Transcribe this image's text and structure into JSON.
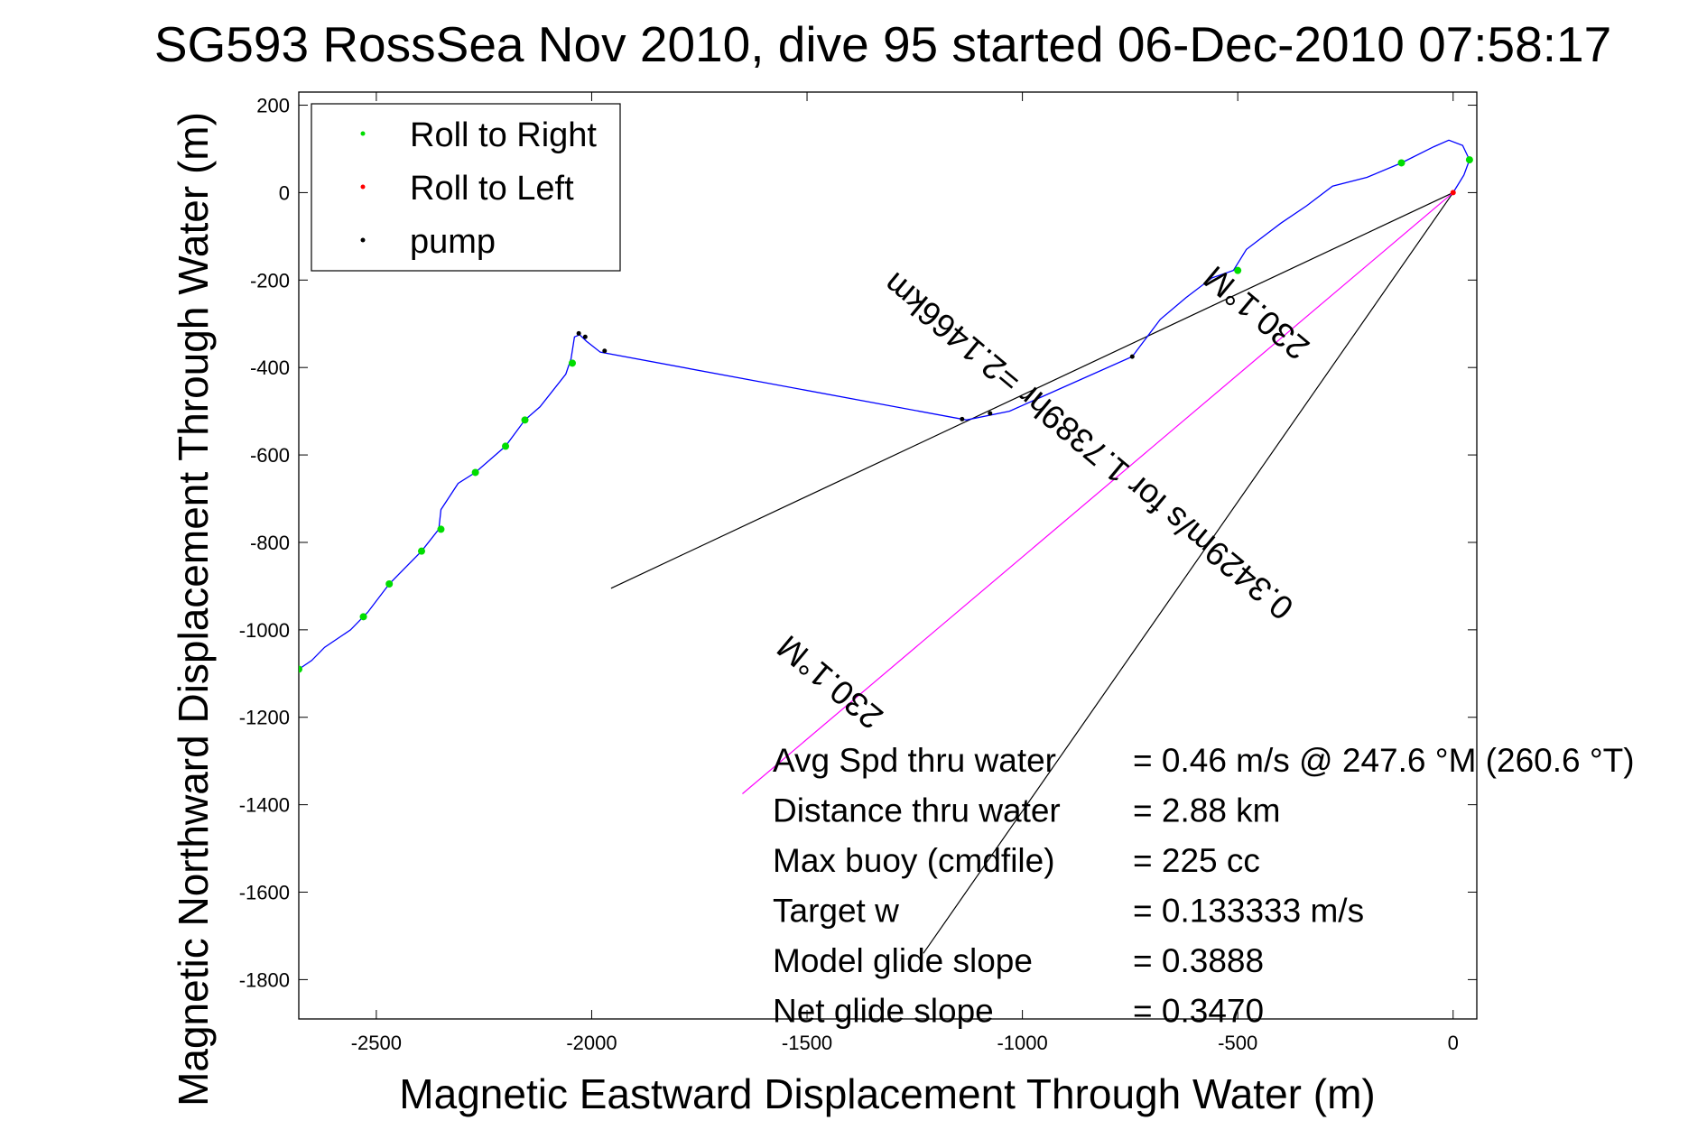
{
  "chart_data": {
    "type": "line",
    "title": "SG593 RossSea Nov 2010, dive 95 started 06-Dec-2010 07:58:17",
    "xlabel": "Magnetic Eastward Displacement Through Water (m)",
    "ylabel": "Magnetic Northward Displacement Through Water (m)",
    "xlim": [
      -2680,
      55
    ],
    "ylim": [
      -1890,
      230
    ],
    "xticks": [
      -2500,
      -2000,
      -1500,
      -1000,
      -500,
      0
    ],
    "yticks": [
      200,
      0,
      -200,
      -400,
      -600,
      -800,
      -1000,
      -1200,
      -1400,
      -1600,
      -1800
    ],
    "grid": false,
    "legend_position": "top-left",
    "legend": [
      {
        "label": "Roll to Right",
        "color": "#00dd00"
      },
      {
        "label": "Roll to Left",
        "color": "#ff0000"
      },
      {
        "label": "pump",
        "color": "#000000"
      }
    ],
    "series": [
      {
        "name": "track",
        "color": "#0000ff",
        "points": [
          [
            0,
            0
          ],
          [
            25,
            40
          ],
          [
            38,
            75
          ],
          [
            22,
            108
          ],
          [
            -10,
            120
          ],
          [
            -45,
            105
          ],
          [
            -120,
            68
          ],
          [
            -200,
            35
          ],
          [
            -280,
            15
          ],
          [
            -340,
            -30
          ],
          [
            -400,
            -70
          ],
          [
            -480,
            -130
          ],
          [
            -510,
            -178
          ],
          [
            -560,
            -195
          ],
          [
            -620,
            -240
          ],
          [
            -680,
            -290
          ],
          [
            -745,
            -375
          ],
          [
            -1030,
            -500
          ],
          [
            -1130,
            -520
          ],
          [
            -1980,
            -365
          ],
          [
            -2012,
            -340
          ],
          [
            -2028,
            -325
          ],
          [
            -2040,
            -330
          ],
          [
            -2048,
            -380
          ],
          [
            -2060,
            -415
          ],
          [
            -2120,
            -490
          ],
          [
            -2155,
            -520
          ],
          [
            -2200,
            -580
          ],
          [
            -2270,
            -640
          ],
          [
            -2310,
            -665
          ],
          [
            -2350,
            -725
          ],
          [
            -2355,
            -770
          ],
          [
            -2395,
            -820
          ],
          [
            -2470,
            -895
          ],
          [
            -2520,
            -960
          ],
          [
            -2560,
            -1000
          ],
          [
            -2620,
            -1040
          ],
          [
            -2650,
            -1070
          ],
          [
            -2680,
            -1090
          ]
        ]
      }
    ],
    "markers": {
      "roll_right": [
        [
          38,
          75
        ],
        [
          -120,
          68
        ],
        [
          -500,
          -178
        ],
        [
          -2045,
          -390
        ],
        [
          -2155,
          -520
        ],
        [
          -2200,
          -580
        ],
        [
          -2270,
          -640
        ],
        [
          -2350,
          -770
        ],
        [
          -2395,
          -820
        ],
        [
          -2470,
          -895
        ],
        [
          -2530,
          -970
        ],
        [
          -2680,
          -1090
        ]
      ],
      "roll_left": [
        [
          0,
          0
        ]
      ],
      "pump": [
        [
          -745,
          -375
        ],
        [
          -1075,
          -505
        ],
        [
          -1140,
          -518
        ],
        [
          -1970,
          -362
        ],
        [
          -2015,
          -330
        ],
        [
          -2030,
          -322
        ]
      ]
    },
    "reference_lines": [
      {
        "color": "#000000",
        "from": [
          0,
          0
        ],
        "to": [
          -1955,
          -905
        ]
      },
      {
        "color": "#000000",
        "from": [
          0,
          0
        ],
        "to": [
          -1230,
          -1740
        ]
      },
      {
        "color": "#ff00ff",
        "from": [
          0,
          0
        ],
        "to": [
          -1650,
          -1375
        ]
      }
    ],
    "annotations": [
      {
        "text": "230.1°M",
        "at": [
          -440,
          -255
        ],
        "angle": 219.8
      },
      {
        "text": "0.3429m/s for 1.7389hr =2.1466km",
        "at": [
          -830,
          -560
        ],
        "angle": 219.8
      },
      {
        "text": "230.1°M",
        "at": [
          -1430,
          -1100
        ],
        "angle": 219.8
      }
    ],
    "stats": [
      {
        "label": "Avg Spd thru water",
        "value": "=  0.46 m/s @ 247.6  °M (260.6 °T)"
      },
      {
        "label": "Distance thru water",
        "value": "=  2.88 km"
      },
      {
        "label": "Max buoy (cmdfile)",
        "value": "= 225 cc"
      },
      {
        "label": "Target w",
        "value": "= 0.133333 m/s"
      },
      {
        "label": "Model glide slope",
        "value": "= 0.3888"
      },
      {
        "label": "Net glide slope",
        "value": "= 0.3470"
      }
    ]
  }
}
